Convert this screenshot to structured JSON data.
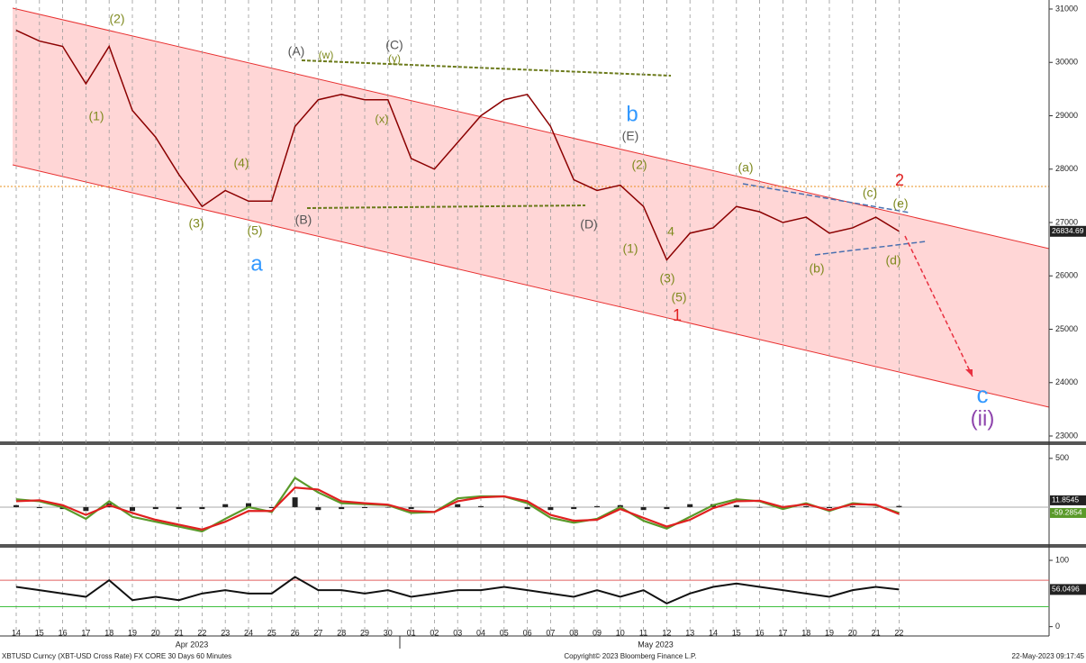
{
  "chart_data": {
    "type": "line",
    "categories": [
      "14",
      "15",
      "16",
      "17",
      "18",
      "19",
      "20",
      "21",
      "22",
      "23",
      "24",
      "25",
      "26",
      "27",
      "28",
      "29",
      "30",
      "01",
      "02",
      "03",
      "04",
      "05",
      "06",
      "07",
      "08",
      "09",
      "10",
      "11",
      "12",
      "13",
      "14",
      "15",
      "16",
      "17",
      "18",
      "19",
      "20",
      "21",
      "22"
    ],
    "month_labels": [
      "Apr 2023",
      "May 2023"
    ],
    "series": [
      {
        "color": "#8b0000",
        "values": [
          30600,
          30400,
          30300,
          29600,
          30300,
          29100,
          28600,
          27900,
          27300,
          27600,
          27400,
          27400,
          28800,
          29300,
          29400,
          29300,
          29300,
          28200,
          28000,
          28500,
          29000,
          29300,
          29400,
          28800,
          27800,
          27600,
          27700,
          27300,
          26300,
          26800,
          26900,
          27300,
          27200,
          27000,
          27100,
          26800,
          26900,
          27100,
          26834.69
        ]
      }
    ],
    "ylim": [
      23000,
      31000
    ],
    "yticks": [
      23000,
      24000,
      25000,
      26000,
      27000,
      28000,
      29000,
      30000,
      31000
    ],
    "annotations": [
      {
        "text": "(1)",
        "color": "#7f8a1f"
      },
      {
        "text": "(2)",
        "color": "#7f8a1f"
      },
      {
        "text": "(3)",
        "color": "#7f8a1f"
      },
      {
        "text": "(4)",
        "color": "#7f8a1f"
      },
      {
        "text": "(5)",
        "color": "#7f8a1f"
      },
      {
        "text": "a",
        "color": "#3399ff"
      },
      {
        "text": "(A)",
        "color": "#555555"
      },
      {
        "text": "(w)",
        "color": "#7f8a1f"
      },
      {
        "text": "(C)",
        "color": "#555555"
      },
      {
        "text": "(y)",
        "color": "#7f8a1f"
      },
      {
        "text": "(x)",
        "color": "#7f8a1f"
      },
      {
        "text": "(B)",
        "color": "#555555"
      },
      {
        "text": "b",
        "color": "#3399ff"
      },
      {
        "text": "(E)",
        "color": "#555555"
      },
      {
        "text": "(2)",
        "color": "#7f8a1f"
      },
      {
        "text": "(D)",
        "color": "#555555"
      },
      {
        "text": "(1)",
        "color": "#7f8a1f"
      },
      {
        "text": "4",
        "color": "#7f8a1f"
      },
      {
        "text": "(3)",
        "color": "#7f8a1f"
      },
      {
        "text": "(5)",
        "color": "#7f8a1f"
      },
      {
        "text": "1",
        "color": "#e02020"
      },
      {
        "text": "(a)",
        "color": "#7f8a1f"
      },
      {
        "text": "(c)",
        "color": "#7f8a1f"
      },
      {
        "text": "(e)",
        "color": "#7f8a1f"
      },
      {
        "text": "2",
        "color": "#e02020"
      },
      {
        "text": "(b)",
        "color": "#7f8a1f"
      },
      {
        "text": "(d)",
        "color": "#7f8a1f"
      },
      {
        "text": "c",
        "color": "#3399ff"
      },
      {
        "text": "(ii)",
        "color": "#8e44ad"
      }
    ],
    "oscillator": {
      "ylim": [
        -250,
        600
      ],
      "yticks": [
        500
      ],
      "series": [
        {
          "color": "#5a9a2a",
          "values": [
            80,
            60,
            0,
            -120,
            60,
            -100,
            -150,
            -200,
            -250,
            -120,
            0,
            -50,
            300,
            150,
            40,
            30,
            20,
            -60,
            -50,
            90,
            110,
            110,
            40,
            -110,
            -160,
            -120,
            0,
            -140,
            -220,
            -100,
            20,
            80,
            60,
            -20,
            40,
            -40,
            40,
            20,
            -59.2854
          ]
        },
        {
          "color": "#e02020",
          "values": [
            60,
            70,
            20,
            -80,
            20,
            -60,
            -130,
            -180,
            -230,
            -150,
            -40,
            -40,
            200,
            180,
            60,
            40,
            25,
            -40,
            -50,
            60,
            100,
            110,
            60,
            -80,
            -140,
            -130,
            -20,
            -110,
            -200,
            -130,
            -10,
            60,
            65,
            0,
            30,
            -30,
            30,
            25,
            -71.1399
          ]
        }
      ],
      "histogram": [
        20,
        -10,
        -20,
        -40,
        40,
        -40,
        -20,
        -20,
        -20,
        30,
        40,
        -10,
        100,
        -30,
        -20,
        -10,
        -5,
        -20,
        0,
        30,
        10,
        0,
        -20,
        -30,
        -20,
        10,
        20,
        -30,
        -20,
        30,
        30,
        20,
        -5,
        -20,
        10,
        -10,
        10,
        -5,
        11.8545
      ]
    },
    "rsi": {
      "ylim": [
        -10,
        115
      ],
      "yticks": [
        0,
        100
      ],
      "levels": [
        {
          "value": 70,
          "color": "#e06060"
        },
        {
          "value": 30,
          "color": "#40c040"
        }
      ],
      "color": "#111111",
      "values": [
        60,
        55,
        50,
        45,
        70,
        40,
        45,
        40,
        50,
        55,
        50,
        50,
        75,
        55,
        55,
        50,
        55,
        45,
        50,
        55,
        55,
        60,
        55,
        50,
        45,
        55,
        45,
        55,
        35,
        50,
        60,
        65,
        60,
        55,
        50,
        45,
        55,
        60,
        56.0496
      ]
    },
    "footer": {
      "left": "XBTUSD Curncy (XBT-USD Cross Rate) FX CORE 30 Days 60 Minutes",
      "center": "Copyright© 2023 Bloomberg Finance L.P.",
      "right": "22-May-2023 09:17:45"
    }
  }
}
